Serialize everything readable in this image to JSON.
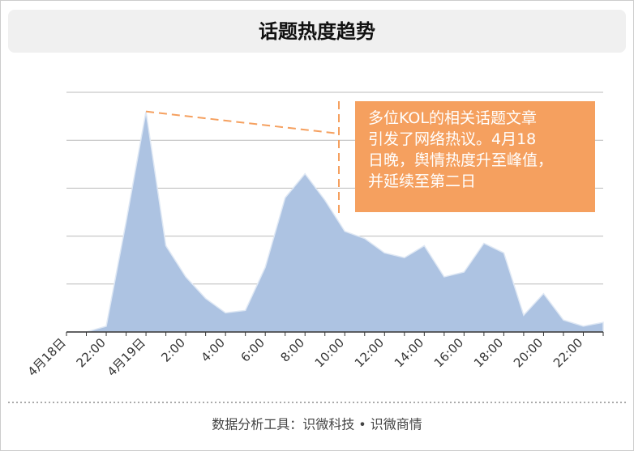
{
  "chart_data": {
    "type": "area",
    "title": "话题热度趋势",
    "categories": [
      "4月18日",
      null,
      "22:00",
      null,
      "4月19日",
      null,
      "2:00",
      null,
      "4:00",
      null,
      "6:00",
      null,
      "8:00",
      null,
      "10:00",
      null,
      "12:00",
      null,
      "14:00",
      null,
      "16:00",
      null,
      "18:00",
      null,
      "20:00",
      null,
      "22:00",
      null
    ],
    "values": [
      0,
      0,
      0.12,
      2.3,
      4.6,
      1.8,
      1.15,
      0.7,
      0.4,
      0.45,
      1.35,
      2.8,
      3.3,
      2.75,
      2.1,
      1.95,
      1.65,
      1.55,
      1.8,
      1.15,
      1.25,
      1.85,
      1.65,
      0.35,
      0.8,
      0.25,
      0.12,
      0.2
    ],
    "color": "#adc3e2",
    "ylim": [
      0,
      5
    ],
    "yticks": [
      0,
      1,
      2,
      3,
      4,
      5
    ],
    "grid": true,
    "annotation": [
      "多位KOL的相关话题文章",
      "引发了网络热议。4月18",
      "日晚，舆情热度升至峰值，",
      "并延续至第二日"
    ],
    "footer": "数据分析工具：识微科技 • 识微商情"
  }
}
